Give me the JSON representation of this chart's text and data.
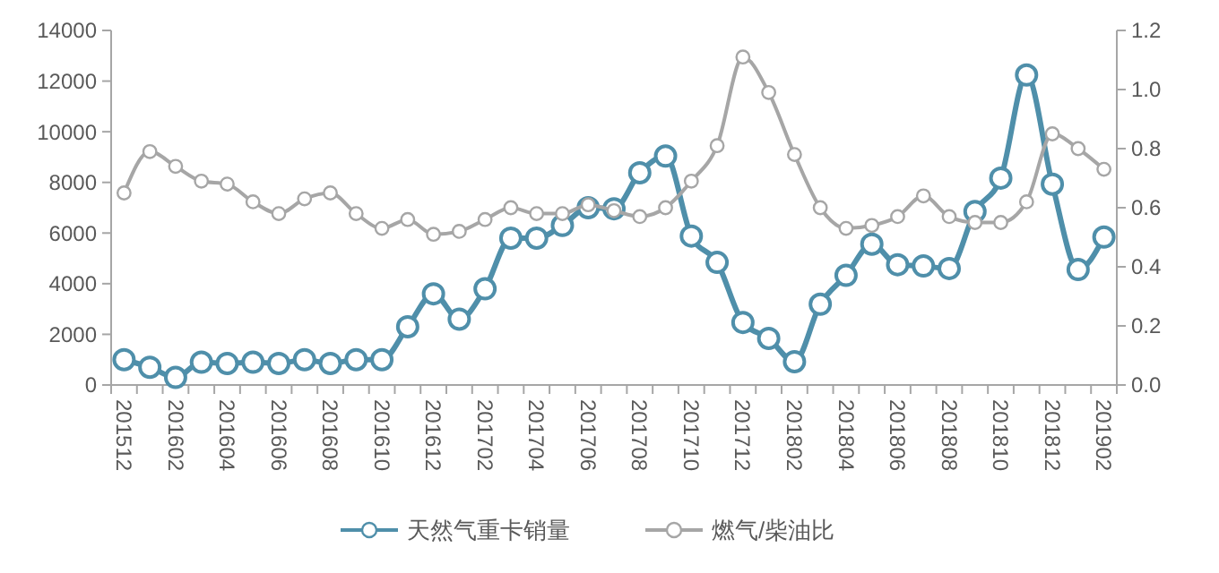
{
  "chart_data": {
    "type": "line",
    "categories": [
      "201512",
      null,
      "201602",
      null,
      "201604",
      null,
      "201606",
      null,
      "201608",
      null,
      "201610",
      null,
      "201612",
      null,
      "201702",
      null,
      "201704",
      null,
      "201706",
      null,
      "201708",
      null,
      "201710",
      null,
      "201712",
      null,
      "201802",
      null,
      "201804",
      null,
      "201806",
      null,
      "201808",
      null,
      "201810",
      null,
      "201812",
      null,
      "201902"
    ],
    "series": [
      {
        "name": "天然气重卡销量",
        "color": "#4f8faa",
        "values": [
          1000,
          700,
          300,
          900,
          850,
          900,
          850,
          1000,
          850,
          1000,
          1000,
          2300,
          3600,
          2600,
          3800,
          5800,
          5800,
          6300,
          7000,
          6960,
          8380,
          9040,
          5880,
          4840,
          2470,
          1840,
          920,
          3190,
          4330,
          5560,
          4750,
          4700,
          4600,
          6850,
          8170,
          12240,
          7930,
          4560,
          5840
        ]
      },
      {
        "name": "燃气/柴油比",
        "color": "#a6a6a6",
        "axis": "y2",
        "values": [
          0.65,
          0.79,
          0.74,
          0.69,
          0.68,
          0.62,
          0.58,
          0.63,
          0.65,
          0.58,
          0.53,
          0.56,
          0.51,
          0.52,
          0.56,
          0.6,
          0.58,
          0.58,
          0.61,
          0.59,
          0.57,
          0.6,
          0.69,
          0.81,
          1.11,
          0.99,
          0.78,
          0.6,
          0.53,
          0.54,
          0.57,
          0.64,
          0.57,
          0.55,
          0.55,
          0.62,
          0.85,
          0.8,
          0.73
        ]
      }
    ],
    "ylim": [
      0,
      14000
    ],
    "yticks": [
      0,
      2000,
      4000,
      6000,
      8000,
      10000,
      12000,
      14000
    ],
    "y2lim": [
      0,
      1.2
    ],
    "y2ticks": [
      {
        "value": 0,
        "label": "0.0"
      },
      {
        "value": 0.2,
        "label": "0.2"
      },
      {
        "value": 0.4,
        "label": "0.4"
      },
      {
        "value": 0.6,
        "label": "0.6"
      },
      {
        "value": 0.8,
        "label": "0.8"
      },
      {
        "value": 1,
        "label": "1.0"
      },
      {
        "value": 1.2,
        "label": "1.2"
      }
    ],
    "marker": "circle",
    "line_style": "solid",
    "grid": false,
    "legend": "bottom"
  }
}
